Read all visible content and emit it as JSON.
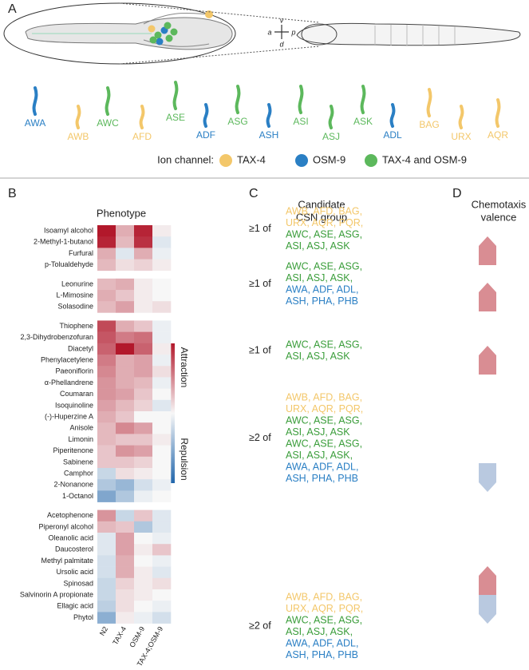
{
  "panel_a": {
    "label": "A",
    "compass": [
      "v",
      "a",
      "p",
      "d"
    ],
    "neurons": [
      {
        "name": "AWA",
        "color": "#2a7fc4"
      },
      {
        "name": "AWB",
        "color": "#f3c76a"
      },
      {
        "name": "AWC",
        "color": "#5cb85c"
      },
      {
        "name": "AFD",
        "color": "#f3c76a"
      },
      {
        "name": "ASE",
        "color": "#5cb85c"
      },
      {
        "name": "ADF",
        "color": "#2a7fc4"
      },
      {
        "name": "ASG",
        "color": "#5cb85c"
      },
      {
        "name": "ASH",
        "color": "#2a7fc4"
      },
      {
        "name": "ASI",
        "color": "#5cb85c"
      },
      {
        "name": "ASJ",
        "color": "#5cb85c"
      },
      {
        "name": "ASK",
        "color": "#5cb85c"
      },
      {
        "name": "ADL",
        "color": "#2a7fc4"
      },
      {
        "name": "BAG",
        "color": "#f3c76a"
      },
      {
        "name": "URX",
        "color": "#f3c76a"
      },
      {
        "name": "AQR",
        "color": "#f3c76a"
      }
    ],
    "legend": {
      "title": "Ion channel:",
      "items": [
        {
          "name": "TAX-4",
          "color": "#f3c76a"
        },
        {
          "name": "OSM-9",
          "color": "#2a7fc4"
        },
        {
          "name": "TAX-4 and OSM-9",
          "color": "#5cb85c"
        }
      ]
    }
  },
  "panel_b": {
    "label": "B",
    "title": "Phenotype",
    "columns": [
      "N2",
      "TAX-4",
      "OSM-9",
      "TAX-4;OSM-9"
    ],
    "groups": [
      {
        "rows": [
          "Isoamyl alcohol",
          "2-Methyl-1-butanol",
          "Furfural",
          "p-Tolualdehyde"
        ],
        "values": [
          [
            0.9,
            0.3,
            0.85,
            0.05
          ],
          [
            0.85,
            0.25,
            0.8,
            -0.1
          ],
          [
            0.3,
            -0.1,
            0.3,
            -0.05
          ],
          [
            0.25,
            0.1,
            0.15,
            0.05
          ]
        ]
      },
      {
        "rows": [
          "Leonurine",
          "L-Mimosine",
          "Solasodine"
        ],
        "values": [
          [
            0.25,
            0.3,
            0.05,
            0
          ],
          [
            0.3,
            0.2,
            0.05,
            0
          ],
          [
            0.25,
            0.35,
            0.05,
            0.1
          ]
        ]
      },
      {
        "rows": [
          "Thiophene",
          "2,3-Dihydrobenzofuran",
          "Diacetyl",
          "Phenylacetylene",
          "Paeoniflorin",
          "α-Phellandrene",
          "Coumaran",
          "Isoquinoline",
          "(-)-Huperzine A",
          "Anisole",
          "Limonin",
          "Piperitenone",
          "Sabinene",
          "Camphor",
          "2-Nonanone",
          "1-Octanol"
        ],
        "values": [
          [
            0.7,
            0.3,
            0.2,
            -0.05
          ],
          [
            0.65,
            0.5,
            0.55,
            -0.05
          ],
          [
            0.6,
            0.9,
            0.6,
            0.05
          ],
          [
            0.5,
            0.3,
            0.35,
            -0.05
          ],
          [
            0.45,
            0.3,
            0.35,
            0.1
          ],
          [
            0.4,
            0.3,
            0.25,
            -0.05
          ],
          [
            0.4,
            0.35,
            0.2,
            0
          ],
          [
            0.35,
            0.25,
            0.15,
            -0.1
          ],
          [
            0.3,
            0.2,
            0,
            0
          ],
          [
            0.25,
            0.45,
            0.35,
            0
          ],
          [
            0.25,
            0.2,
            0.2,
            0.05
          ],
          [
            0.2,
            0.4,
            0.35,
            0
          ],
          [
            0.2,
            0.2,
            0.15,
            0
          ],
          [
            -0.2,
            0.1,
            0.05,
            0
          ],
          [
            -0.3,
            -0.4,
            -0.15,
            -0.05
          ],
          [
            -0.5,
            -0.3,
            -0.05,
            0
          ]
        ]
      },
      {
        "rows": [
          "Acetophenone",
          "Piperonyl alcohol",
          "Oleanolic acid",
          "Daucosterol",
          "Methyl palmitate",
          "Ursolic acid",
          "Spinosad",
          "Salvinorin A propionate",
          "Ellagic acid",
          "Phytol"
        ],
        "values": [
          [
            0.4,
            -0.2,
            0.2,
            -0.1
          ],
          [
            0.25,
            0.2,
            -0.3,
            -0.1
          ],
          [
            -0.1,
            0.35,
            0,
            -0.05
          ],
          [
            -0.1,
            0.35,
            0.05,
            0.2
          ],
          [
            -0.15,
            0.3,
            0,
            -0.05
          ],
          [
            -0.15,
            0.3,
            0.05,
            -0.1
          ],
          [
            -0.2,
            0.15,
            0.05,
            0.1
          ],
          [
            -0.2,
            0.1,
            0.05,
            0
          ],
          [
            -0.25,
            0.1,
            0,
            -0.05
          ],
          [
            -0.45,
            0.05,
            -0.05,
            -0.15
          ]
        ]
      }
    ],
    "colorbar": {
      "high": "Attraction",
      "low": "Repulsion",
      "high_color": "#b2182b",
      "low_color": "#2166ac"
    }
  },
  "panel_c": {
    "label": "C",
    "title": [
      "Candidate",
      "CSN group"
    ],
    "entries": [
      {
        "prefix": "≥1 of",
        "lines": [
          {
            "text": "AWB, AFD, BAG,",
            "color": "#f3c76a"
          },
          {
            "text": "URX, AQR, PQR,",
            "color": "#f3c76a"
          },
          {
            "text": "AWC, ASE, ASG,",
            "color": "#3a9d3a"
          },
          {
            "text": "ASI, ASJ, ASK",
            "color": "#3a9d3a"
          }
        ]
      },
      {
        "prefix": "≥1 of",
        "lines": [
          {
            "text": "AWC, ASE, ASG,",
            "color": "#3a9d3a"
          },
          {
            "text": "ASI, ASJ, ASK,",
            "color": "#3a9d3a"
          },
          {
            "text": "AWA, ADF, ADL,",
            "color": "#2a7fc4"
          },
          {
            "text": "ASH, PHA, PHB",
            "color": "#2a7fc4"
          }
        ]
      },
      {
        "prefix": "≥1 of",
        "lines": [
          {
            "text": "AWC, ASE, ASG,",
            "color": "#3a9d3a"
          },
          {
            "text": "ASI, ASJ, ASK",
            "color": "#3a9d3a"
          }
        ]
      },
      {
        "prefix": "≥2 of",
        "lines": [
          {
            "text": "AWB, AFD, BAG,",
            "color": "#f3c76a"
          },
          {
            "text": "URX, AQR, PQR,",
            "color": "#f3c76a"
          },
          {
            "text": "AWC, ASE, ASG,",
            "color": "#3a9d3a"
          },
          {
            "text": "ASI, ASJ, ASK",
            "color": "#3a9d3a"
          },
          {
            "text": "AWC, ASE, ASG,",
            "color": "#3a9d3a"
          },
          {
            "text": "ASI, ASJ, ASK,",
            "color": "#3a9d3a"
          },
          {
            "text": "AWA, ADF, ADL,",
            "color": "#2a7fc4"
          },
          {
            "text": "ASH, PHA, PHB",
            "color": "#2a7fc4"
          }
        ]
      },
      {
        "prefix": "≥2 of",
        "lines": [
          {
            "text": "AWB, AFD, BAG,",
            "color": "#f3c76a"
          },
          {
            "text": "URX, AQR, PQR,",
            "color": "#f3c76a"
          },
          {
            "text": "AWC, ASE, ASG,",
            "color": "#3a9d3a"
          },
          {
            "text": "ASI, ASJ, ASK,",
            "color": "#3a9d3a"
          },
          {
            "text": "AWA, ADF, ADL,",
            "color": "#2a7fc4"
          },
          {
            "text": "ASH, PHA, PHB",
            "color": "#2a7fc4"
          }
        ]
      }
    ]
  },
  "panel_d": {
    "label": "D",
    "title": [
      "Chemotaxis",
      "valence"
    ],
    "arrows": [
      "up",
      "up",
      "up",
      "down",
      "both"
    ],
    "up_color": "#d98d93",
    "down_color": "#b9c9e0"
  }
}
